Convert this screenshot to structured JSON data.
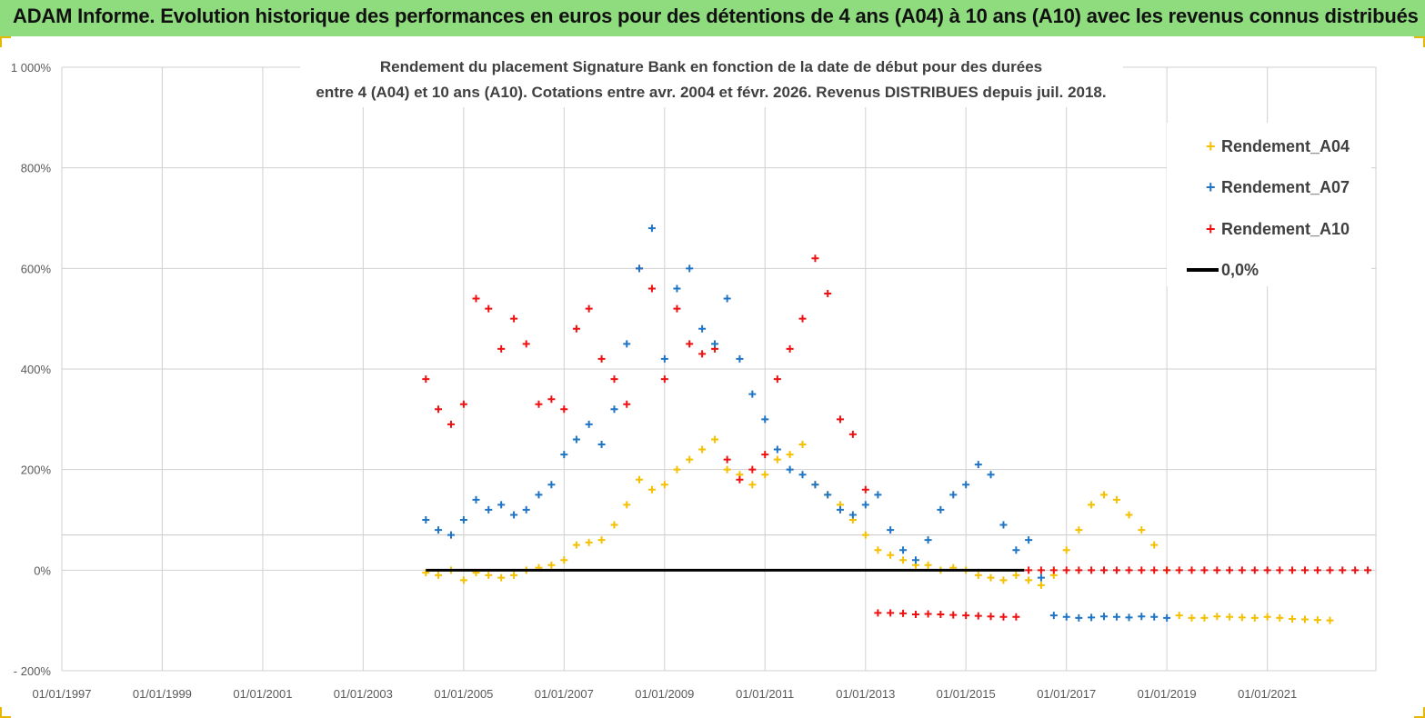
{
  "banner": {
    "title": "ADAM Informe. Evolution historique des performances en euros pour des détentions de 4 ans (A04) à 10 ans (A10) avec les revenus connus distribués"
  },
  "colors": {
    "banner": "#8fdc7e",
    "A04": "#f5c000",
    "A07": "#1f74c4",
    "A10": "#ee1111",
    "zero": "#000000"
  },
  "chart_data": {
    "type": "scatter",
    "title_lines": [
      "Rendement du placement Signature Bank en fonction de la date de début pour des durées",
      "entre 4 (A04) et 10 ans (A10).  Cotations entre avr. 2004 et févr. 2026. Revenus DISTRIBUES depuis juil. 2018."
    ],
    "xlabel": "",
    "ylabel": "",
    "x_range": [
      "1997-01-01",
      "2023-03-01"
    ],
    "x_ticks": [
      "01/01/1997",
      "01/01/1999",
      "01/01/2001",
      "01/01/2003",
      "01/01/2005",
      "01/01/2007",
      "01/01/2009",
      "01/01/2011",
      "01/01/2013",
      "01/01/2015",
      "01/01/2017",
      "01/01/2019",
      "01/01/2021"
    ],
    "ylim": [
      -200,
      1000
    ],
    "y_ticks": [
      -200,
      0,
      200,
      400,
      600,
      800,
      1000
    ],
    "y_tick_labels": [
      "- 200%",
      "0%",
      "200%",
      "400%",
      "600%",
      "800%",
      "1 000%"
    ],
    "grid": true,
    "legend_position": "top-right",
    "legend": [
      "Rendement_A04",
      "Rendement_A07",
      "Rendement_A10",
      "0,0%"
    ],
    "series": [
      {
        "name": "Rendement_A04",
        "marker": "plus",
        "x": [
          "2004-04-01",
          "2004-07-01",
          "2004-10-01",
          "2005-01-01",
          "2005-04-01",
          "2005-07-01",
          "2005-10-01",
          "2006-01-01",
          "2006-04-01",
          "2006-07-01",
          "2006-10-01",
          "2007-01-01",
          "2007-04-01",
          "2007-07-01",
          "2007-10-01",
          "2008-01-01",
          "2008-04-01",
          "2008-07-01",
          "2008-10-01",
          "2009-01-01",
          "2009-04-01",
          "2009-07-01",
          "2009-10-01",
          "2010-01-01",
          "2010-04-01",
          "2010-07-01",
          "2010-10-01",
          "2011-01-01",
          "2011-04-01",
          "2011-07-01",
          "2011-10-01",
          "2012-01-01",
          "2012-04-01",
          "2012-07-01",
          "2012-10-01",
          "2013-01-01",
          "2013-04-01",
          "2013-07-01",
          "2013-10-01",
          "2014-01-01",
          "2014-04-01",
          "2014-07-01",
          "2014-10-01",
          "2015-01-01",
          "2015-04-01",
          "2015-07-01",
          "2015-10-01",
          "2016-01-01",
          "2016-04-01",
          "2016-07-01",
          "2016-10-01",
          "2017-01-01",
          "2017-04-01",
          "2017-07-01",
          "2017-10-01",
          "2018-01-01",
          "2018-04-01",
          "2018-07-01",
          "2018-10-01",
          "2019-01-01",
          "2019-04-01",
          "2019-07-01",
          "2019-10-01",
          "2020-01-01",
          "2020-04-01",
          "2020-07-01",
          "2020-10-01",
          "2021-01-01",
          "2021-04-01",
          "2021-07-01",
          "2021-10-01",
          "2022-01-01",
          "2022-04-01"
        ],
        "y": [
          -5,
          -10,
          0,
          -20,
          -5,
          -10,
          -15,
          -10,
          0,
          5,
          10,
          20,
          50,
          55,
          60,
          90,
          130,
          180,
          160,
          170,
          200,
          220,
          240,
          260,
          200,
          190,
          170,
          190,
          220,
          230,
          250,
          170,
          150,
          130,
          100,
          70,
          40,
          30,
          20,
          10,
          10,
          0,
          5,
          0,
          -10,
          -15,
          -20,
          -10,
          -20,
          -30,
          -10,
          40,
          80,
          130,
          150,
          140,
          110,
          80,
          50,
          0,
          -90,
          -95,
          -95,
          -92,
          -93,
          -94,
          -95,
          -93,
          -95,
          -97,
          -98,
          -99,
          -100
        ]
      },
      {
        "name": "Rendement_A07",
        "marker": "plus",
        "x": [
          "2004-04-01",
          "2004-07-01",
          "2004-10-01",
          "2005-01-01",
          "2005-04-01",
          "2005-07-01",
          "2005-10-01",
          "2006-01-01",
          "2006-04-01",
          "2006-07-01",
          "2006-10-01",
          "2007-01-01",
          "2007-04-01",
          "2007-07-01",
          "2007-10-01",
          "2008-01-01",
          "2008-04-01",
          "2008-07-01",
          "2008-10-01",
          "2009-01-01",
          "2009-04-01",
          "2009-07-01",
          "2009-10-01",
          "2010-01-01",
          "2010-04-01",
          "2010-07-01",
          "2010-10-01",
          "2011-01-01",
          "2011-04-01",
          "2011-07-01",
          "2011-10-01",
          "2012-01-01",
          "2012-04-01",
          "2012-07-01",
          "2012-10-01",
          "2013-01-01",
          "2013-04-01",
          "2013-07-01",
          "2013-10-01",
          "2014-01-01",
          "2014-04-01",
          "2014-07-01",
          "2014-10-01",
          "2015-01-01",
          "2015-04-01",
          "2015-07-01",
          "2015-10-01",
          "2016-01-01",
          "2016-04-01",
          "2016-07-01",
          "2016-10-01",
          "2017-01-01",
          "2017-04-01",
          "2017-07-01",
          "2017-10-01",
          "2018-01-01",
          "2018-04-01",
          "2018-07-01",
          "2018-10-01",
          "2019-01-01"
        ],
        "y": [
          100,
          80,
          70,
          100,
          140,
          120,
          130,
          110,
          120,
          150,
          170,
          230,
          260,
          290,
          250,
          320,
          450,
          600,
          680,
          420,
          560,
          600,
          480,
          450,
          540,
          420,
          350,
          300,
          240,
          200,
          190,
          170,
          150,
          120,
          110,
          130,
          150,
          80,
          40,
          20,
          60,
          120,
          150,
          170,
          210,
          190,
          90,
          40,
          60,
          -15,
          -90,
          -93,
          -95,
          -94,
          -92,
          -93,
          -94,
          -92,
          -93,
          -95
        ]
      },
      {
        "name": "Rendement_A10",
        "marker": "plus",
        "x": [
          "2004-04-01",
          "2004-07-01",
          "2004-10-01",
          "2005-01-01",
          "2005-04-01",
          "2005-07-01",
          "2005-10-01",
          "2006-01-01",
          "2006-04-01",
          "2006-07-01",
          "2006-10-01",
          "2007-01-01",
          "2007-04-01",
          "2007-07-01",
          "2007-10-01",
          "2008-01-01",
          "2008-04-01",
          "2008-07-01",
          "2008-10-01",
          "2009-01-01",
          "2009-04-01",
          "2009-07-01",
          "2009-10-01",
          "2010-01-01",
          "2010-04-01",
          "2010-07-01",
          "2010-10-01",
          "2011-01-01",
          "2011-04-01",
          "2011-07-01",
          "2011-10-01",
          "2012-01-01",
          "2012-04-01",
          "2012-07-01",
          "2012-10-01",
          "2013-01-01",
          "2013-04-01",
          "2013-07-01",
          "2013-10-01",
          "2014-01-01",
          "2014-04-01",
          "2014-07-01",
          "2014-10-01",
          "2015-01-01",
          "2015-04-01",
          "2015-07-01",
          "2015-10-01",
          "2016-01-01",
          "2016-04-01",
          "2016-07-01",
          "2016-10-01",
          "2017-01-01",
          "2017-04-01",
          "2017-07-01",
          "2017-10-01",
          "2018-01-01",
          "2018-04-01",
          "2018-07-01",
          "2018-10-01",
          "2019-01-01",
          "2019-04-01",
          "2019-07-01",
          "2019-10-01",
          "2020-01-01",
          "2020-04-01",
          "2020-07-01",
          "2020-10-01",
          "2021-01-01",
          "2021-04-01",
          "2021-07-01",
          "2021-10-01",
          "2022-01-01",
          "2022-04-01",
          "2022-07-01",
          "2022-10-01",
          "2023-01-01"
        ],
        "y": [
          380,
          320,
          290,
          330,
          540,
          520,
          440,
          500,
          450,
          330,
          340,
          320,
          480,
          520,
          420,
          380,
          330,
          600,
          560,
          380,
          520,
          450,
          430,
          440,
          220,
          180,
          200,
          230,
          380,
          440,
          500,
          620,
          550,
          300,
          270,
          160,
          -85,
          -85,
          -86,
          -88,
          -87,
          -88,
          -89,
          -90,
          -91,
          -92,
          -93,
          -93,
          0,
          0,
          0,
          0,
          0,
          0,
          0,
          0,
          0,
          0,
          0,
          0,
          0,
          0,
          0,
          0,
          0,
          0,
          0,
          0,
          0,
          0,
          0,
          0,
          0,
          0,
          0,
          0
        ]
      },
      {
        "name": "0,0%",
        "type": "line",
        "x": [
          "2004-04-01",
          "2016-03-01"
        ],
        "y": [
          0,
          0
        ]
      }
    ]
  }
}
